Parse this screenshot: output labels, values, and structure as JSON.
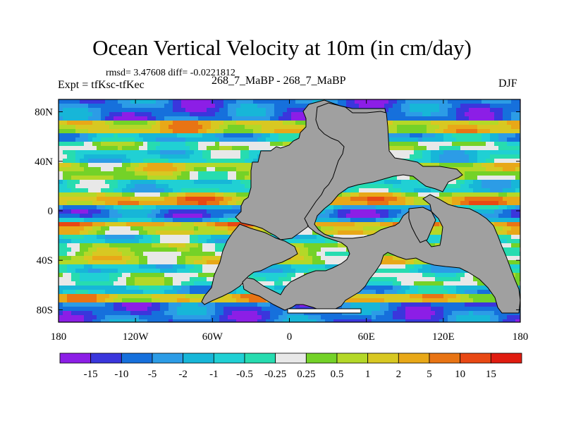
{
  "figure": {
    "title": "Ocean Vertical Velocity at 10m (in cm/day)",
    "stats": "rmsd= 3.47608 diff= -0.0221812",
    "left_label": "Expt = tfKsc-tfKec",
    "center_label": "268_7_MaBP - 268_7_MaBP",
    "right_label": "DJF"
  },
  "colors": {
    "land": "#a0a0a0",
    "coast": "#000000",
    "frame": "#000000"
  },
  "chart_data": {
    "type": "heatmap",
    "title": "Ocean Vertical Velocity at 10m (in cm/day)",
    "units": "cm/day",
    "season": "DJF",
    "x_axis": {
      "range": [
        -180,
        180
      ],
      "ticks": [
        -180,
        -120,
        -60,
        0,
        60,
        120,
        180
      ],
      "tick_labels": [
        "180",
        "120W",
        "60W",
        "0",
        "60E",
        "120E",
        "180"
      ]
    },
    "y_axis": {
      "range": [
        -90,
        90
      ],
      "ticks": [
        80,
        40,
        0,
        -40,
        -80
      ],
      "tick_labels": [
        "80N",
        "40N",
        "0",
        "40S",
        "80S"
      ]
    },
    "colorbar": {
      "labels": [
        "-15",
        "-10",
        "-5",
        "-2",
        "-1",
        "-0.5",
        "-0.25",
        "0.25",
        "0.5",
        "1",
        "2",
        "5",
        "10",
        "15"
      ],
      "colors": [
        "#8c1ee6",
        "#3a36dc",
        "#1670dc",
        "#2c9ce6",
        "#17b6d8",
        "#20d0d4",
        "#27dcb0",
        "#e8e8e8",
        "#74d228",
        "#b4d828",
        "#d8c822",
        "#e8a818",
        "#e87414",
        "#e84814",
        "#e01c10"
      ]
    }
  }
}
